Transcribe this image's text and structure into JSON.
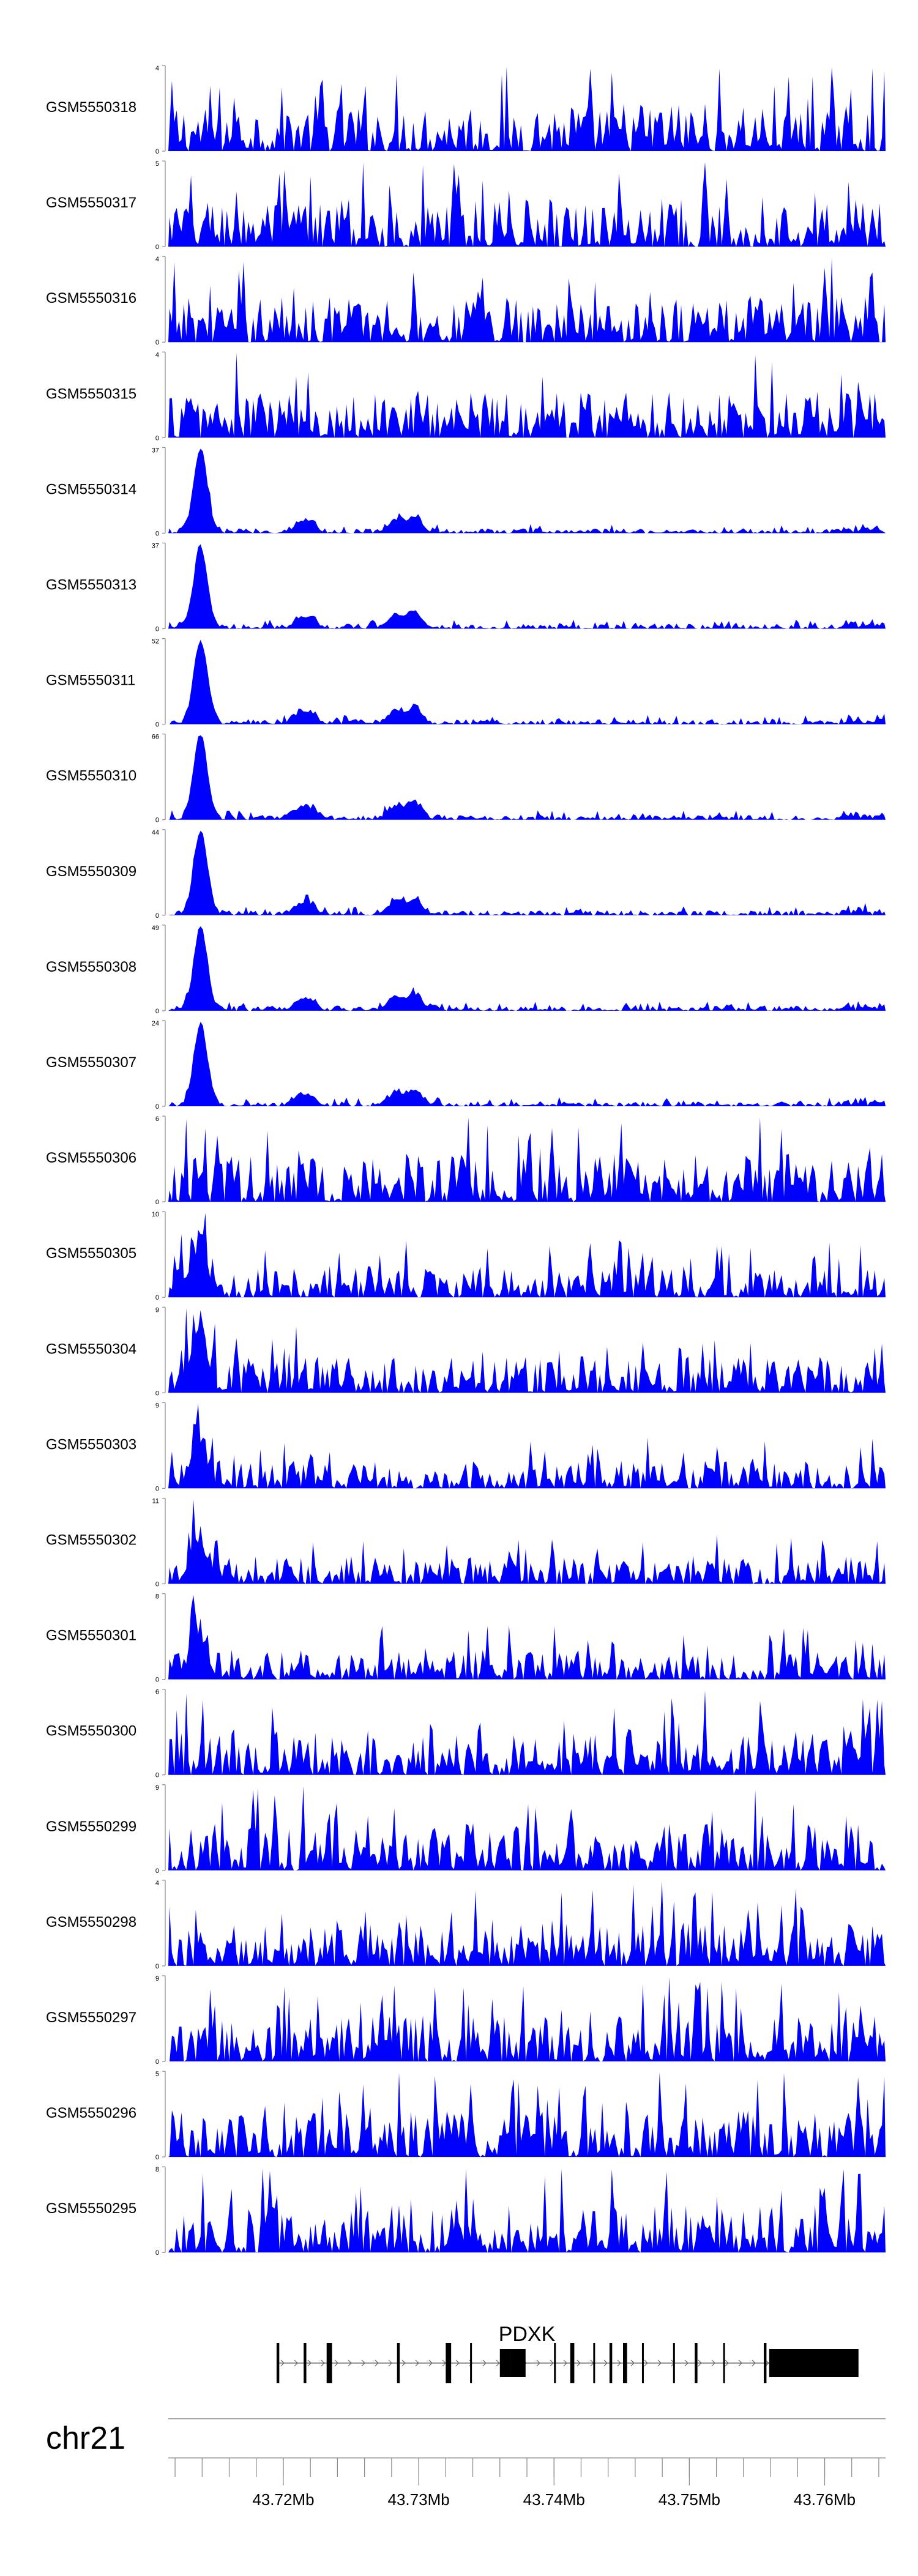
{
  "chart_data": {
    "type": "area",
    "xlim": [
      43.7115,
      43.7645
    ],
    "units": "Mb",
    "fill_color": "#0000ff",
    "tracks": [
      {
        "label": "GSM5550318",
        "ymax": 4,
        "shape": "uniform"
      },
      {
        "label": "GSM5550317",
        "ymax": 5,
        "shape": "uniform"
      },
      {
        "label": "GSM5550316",
        "ymax": 4,
        "shape": "uniform"
      },
      {
        "label": "GSM5550315",
        "ymax": 4,
        "shape": "uniform"
      },
      {
        "label": "GSM5550314",
        "ymax": 37,
        "shape": "promoter-peak"
      },
      {
        "label": "GSM5550313",
        "ymax": 37,
        "shape": "promoter-peak"
      },
      {
        "label": "GSM5550311",
        "ymax": 52,
        "shape": "promoter-peak"
      },
      {
        "label": "GSM5550310",
        "ymax": 66,
        "shape": "promoter-peak"
      },
      {
        "label": "GSM5550309",
        "ymax": 44,
        "shape": "promoter-peak"
      },
      {
        "label": "GSM5550308",
        "ymax": 49,
        "shape": "promoter-peak"
      },
      {
        "label": "GSM5550307",
        "ymax": 24,
        "shape": "promoter-peak"
      },
      {
        "label": "GSM5550306",
        "ymax": 6,
        "shape": "uniform"
      },
      {
        "label": "GSM5550305",
        "ymax": 10,
        "shape": "moderate-peak"
      },
      {
        "label": "GSM5550304",
        "ymax": 9,
        "shape": "moderate-peak"
      },
      {
        "label": "GSM5550303",
        "ymax": 9,
        "shape": "moderate-peak"
      },
      {
        "label": "GSM5550302",
        "ymax": 11,
        "shape": "moderate-peak"
      },
      {
        "label": "GSM5550301",
        "ymax": 8,
        "shape": "moderate-peak"
      },
      {
        "label": "GSM5550300",
        "ymax": 6,
        "shape": "uniform"
      },
      {
        "label": "GSM5550299",
        "ymax": 9,
        "shape": "uniform"
      },
      {
        "label": "GSM5550298",
        "ymax": 4,
        "shape": "uniform"
      },
      {
        "label": "GSM5550297",
        "ymax": 9,
        "shape": "uniform"
      },
      {
        "label": "GSM5550296",
        "ymax": 5,
        "shape": "uniform"
      },
      {
        "label": "GSM5550295",
        "ymax": 8,
        "shape": "uniform"
      }
    ],
    "gene": {
      "name": "PDXK",
      "start": 43.7195,
      "end": 43.7625,
      "strand": "+",
      "exons": [
        [
          43.7195,
          43.7197
        ],
        [
          43.7215,
          43.7217
        ],
        [
          43.7232,
          43.7236
        ],
        [
          43.7284,
          43.7286
        ],
        [
          43.732,
          43.7324
        ],
        [
          43.7338,
          43.7339
        ],
        [
          43.736,
          43.7368
        ],
        [
          43.7368,
          43.7379
        ],
        [
          43.74,
          43.7401
        ],
        [
          43.7412,
          43.7415
        ],
        [
          43.7429,
          43.743
        ],
        [
          43.7441,
          43.7443
        ],
        [
          43.7451,
          43.7454
        ],
        [
          43.7465,
          43.7466
        ],
        [
          43.7488,
          43.7489
        ],
        [
          43.7504,
          43.7506
        ],
        [
          43.7525,
          43.7526
        ],
        [
          43.7555,
          43.7557
        ],
        [
          43.7559,
          43.7625
        ]
      ]
    },
    "chromosome": "chr21",
    "ticks": [
      {
        "value": 43.72,
        "label": "43.72Mb"
      },
      {
        "value": 43.73,
        "label": "43.73Mb"
      },
      {
        "value": 43.74,
        "label": "43.74Mb"
      },
      {
        "value": 43.75,
        "label": "43.75Mb"
      },
      {
        "value": 43.76,
        "label": "43.76Mb"
      }
    ],
    "minor_tick_step": 0.002,
    "axis_min_label": "0"
  }
}
